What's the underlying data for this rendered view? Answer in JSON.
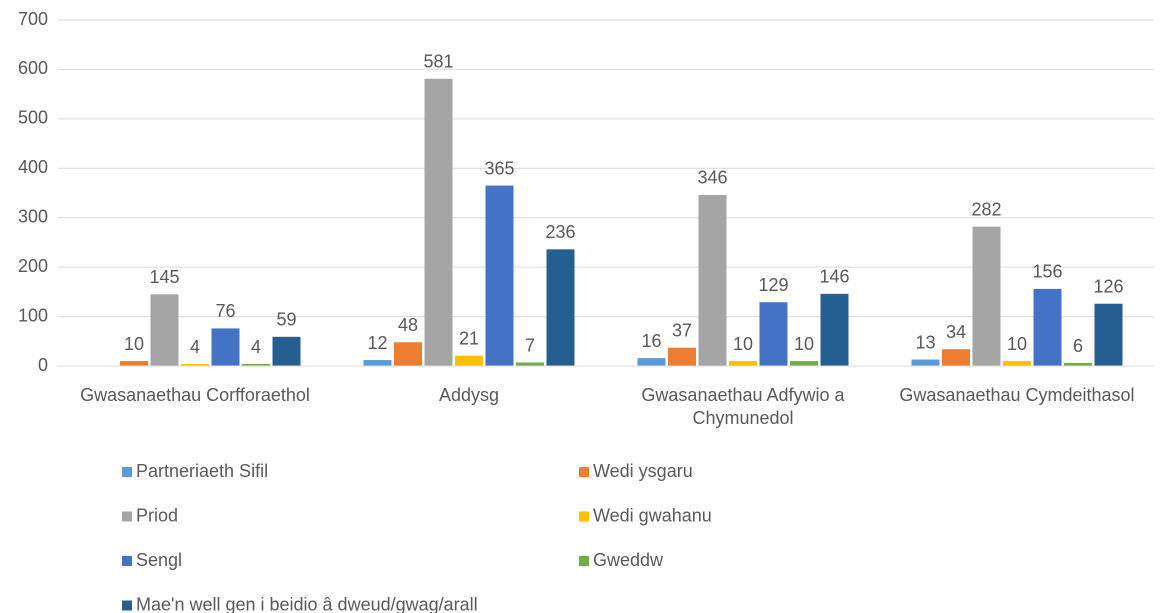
{
  "chart_data": {
    "type": "bar",
    "categories": [
      "Gwasanaethau Corfforaethol",
      "Addysg",
      "Gwasanaethau Adfywio a Chymunedol",
      "Gwasanaethau Cymdeithasol"
    ],
    "series": [
      {
        "name": "Partneriaeth Sifil",
        "color": "#5b9bd5",
        "values": [
          null,
          12,
          16,
          13
        ]
      },
      {
        "name": "Wedi ysgaru",
        "color": "#ed7d31",
        "values": [
          10,
          48,
          37,
          34
        ]
      },
      {
        "name": "Priod",
        "color": "#a5a5a5",
        "values": [
          145,
          581,
          346,
          282
        ]
      },
      {
        "name": "Wedi gwahanu",
        "color": "#ffc000",
        "values": [
          4,
          21,
          10,
          10
        ]
      },
      {
        "name": "Sengl",
        "color": "#4472c4",
        "values": [
          76,
          365,
          129,
          156
        ]
      },
      {
        "name": "Gweddw",
        "color": "#70ad47",
        "values": [
          4,
          7,
          10,
          6
        ]
      },
      {
        "name": "Mae'n well gen i beidio â dweud/gwag/arall",
        "color": "#255e91",
        "values": [
          59,
          236,
          146,
          126
        ]
      }
    ],
    "ylim": [
      0,
      700
    ],
    "yticks": [
      0,
      100,
      200,
      300,
      400,
      500,
      600,
      700
    ],
    "grid": true,
    "legend": "bottom"
  }
}
